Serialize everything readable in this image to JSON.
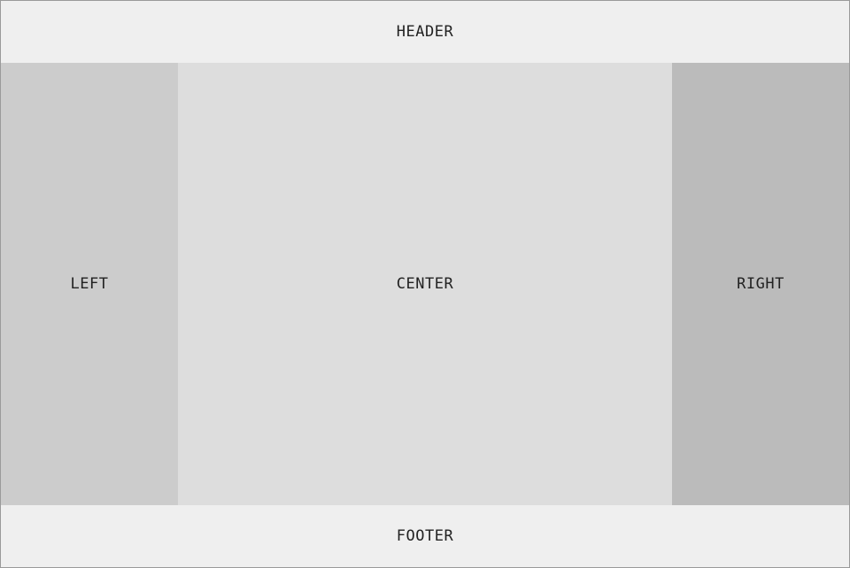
{
  "header": {
    "label": "HEADER"
  },
  "left": {
    "label": "LEFT"
  },
  "center": {
    "label": "CENTER"
  },
  "right": {
    "label": "RIGHT"
  },
  "footer": {
    "label": "FOOTER"
  },
  "colors": {
    "header_bg": "#efefef",
    "left_bg": "#cccccc",
    "center_bg": "#dddddd",
    "right_bg": "#bbbbbb",
    "footer_bg": "#efefef",
    "text": "#222222"
  }
}
